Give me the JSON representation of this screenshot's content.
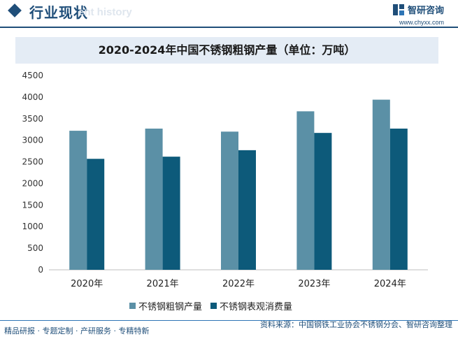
{
  "header": {
    "section_title": "行业现状",
    "section_subtitle": "ent history",
    "logo_text": "智研咨询",
    "logo_url": "www.chyxx.com"
  },
  "colors": {
    "primary": "#1f4e79",
    "series1": "#5b90a6",
    "series2": "#0d5a7a"
  },
  "chart_data": {
    "type": "bar",
    "title": "2020-2024年中国不锈钢粗钢产量（单位：万吨）",
    "categories": [
      "2020年",
      "2021年",
      "2022年",
      "2023年",
      "2024年"
    ],
    "series": [
      {
        "name": "不锈钢粗钢产量",
        "values": [
          3220,
          3270,
          3200,
          3670,
          3940
        ]
      },
      {
        "name": "不锈钢表观消费量",
        "values": [
          2570,
          2620,
          2770,
          3170,
          3270
        ]
      }
    ],
    "yticks": [
      0,
      500,
      1000,
      1500,
      2000,
      2500,
      3000,
      3500,
      4000,
      4500
    ],
    "ylim": [
      0,
      4500
    ],
    "xlabel": "",
    "ylabel": "",
    "legend_position": "bottom"
  },
  "footer": {
    "left_text": "精品研报 · 专题定制 · 产研服务 · 专精特新",
    "right_text": "资料来源：中国钢铁工业协会不锈钢分会、智研咨询整理"
  }
}
